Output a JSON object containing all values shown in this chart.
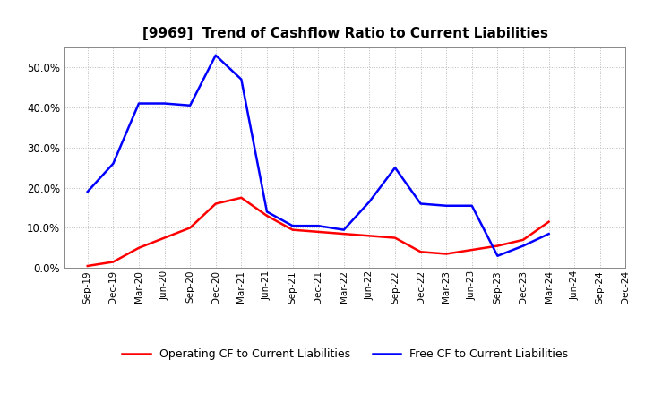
{
  "title": "[9969]  Trend of Cashflow Ratio to Current Liabilities",
  "x_labels": [
    "Sep-19",
    "Dec-19",
    "Mar-20",
    "Jun-20",
    "Sep-20",
    "Dec-20",
    "Mar-21",
    "Jun-21",
    "Sep-21",
    "Dec-21",
    "Mar-22",
    "Jun-22",
    "Sep-22",
    "Dec-22",
    "Mar-23",
    "Jun-23",
    "Sep-23",
    "Dec-23",
    "Mar-24",
    "Jun-24",
    "Sep-24",
    "Dec-24"
  ],
  "operating_cf": [
    0.5,
    1.5,
    5.0,
    7.5,
    10.0,
    16.0,
    17.5,
    13.0,
    9.5,
    9.0,
    8.5,
    8.0,
    7.5,
    4.0,
    3.5,
    4.5,
    5.5,
    7.0,
    11.5,
    null,
    null,
    null
  ],
  "free_cf": [
    19.0,
    26.0,
    41.0,
    41.0,
    40.5,
    53.0,
    47.0,
    14.0,
    10.5,
    10.5,
    9.5,
    16.5,
    25.0,
    16.0,
    15.5,
    15.5,
    3.0,
    5.5,
    8.5,
    null,
    null,
    null
  ],
  "operating_cf_color": "#ff0000",
  "free_cf_color": "#0000ff",
  "ylim": [
    0.0,
    0.55
  ],
  "yticks": [
    0.0,
    0.1,
    0.2,
    0.3,
    0.4,
    0.5
  ],
  "background_color": "#ffffff",
  "grid_color": "#bbbbbb",
  "title_fontsize": 11,
  "legend_label_operating": "Operating CF to Current Liabilities",
  "legend_label_free": "Free CF to Current Liabilities"
}
